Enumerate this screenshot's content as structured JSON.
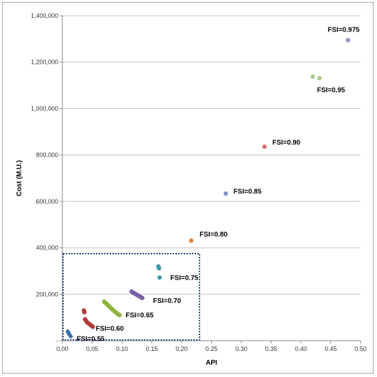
{
  "chart_data": {
    "type": "scatter",
    "title": "",
    "xlabel": "API",
    "ylabel": "Cost (M.U.)",
    "xlim": [
      0,
      0.5
    ],
    "ylim": [
      0,
      1400000
    ],
    "x_ticks": [
      "0.00",
      "0.05",
      "0.10",
      "0.15",
      "0.20",
      "0.25",
      "0.30",
      "0.35",
      "0.40",
      "0.45",
      "0.50"
    ],
    "y_ticks": [
      "-",
      "200,000",
      "400,000",
      "600,000",
      "800,000",
      "1,000,000",
      "1,200,000",
      "1,400,000"
    ],
    "grid": "horizontal",
    "legend": "none",
    "series": [
      {
        "label": "FSI=0.55",
        "color": "#3a6fb0",
        "marker": "diamond",
        "points": [
          [
            0.009,
            40000
          ],
          [
            0.01,
            35000
          ],
          [
            0.011,
            30000
          ],
          [
            0.012,
            26000
          ],
          [
            0.013,
            22000
          ],
          [
            0.014,
            18000
          ]
        ]
      },
      {
        "label": "FSI=0.60",
        "color": "#b03a3a",
        "marker": "circle",
        "points": [
          [
            0.036,
            130000
          ],
          [
            0.037,
            123000
          ],
          [
            0.038,
            92000
          ],
          [
            0.04,
            85000
          ],
          [
            0.041,
            80000
          ],
          [
            0.043,
            76000
          ],
          [
            0.045,
            72000
          ],
          [
            0.047,
            68000
          ],
          [
            0.049,
            64000
          ],
          [
            0.051,
            60000
          ]
        ]
      },
      {
        "label": "FSI=0.65",
        "color": "#8db43c",
        "marker": "circle",
        "points": [
          [
            0.07,
            168000
          ],
          [
            0.072,
            164000
          ],
          [
            0.074,
            159000
          ],
          [
            0.076,
            154000
          ],
          [
            0.078,
            149000
          ],
          [
            0.08,
            144000
          ],
          [
            0.082,
            139000
          ],
          [
            0.084,
            134000
          ],
          [
            0.086,
            130000
          ],
          [
            0.088,
            125000
          ],
          [
            0.09,
            121000
          ],
          [
            0.092,
            117000
          ],
          [
            0.094,
            113000
          ],
          [
            0.096,
            110000
          ]
        ]
      },
      {
        "label": "FSI=0.70",
        "color": "#7b5ea8",
        "marker": "circle",
        "points": [
          [
            0.116,
            212000
          ],
          [
            0.118,
            208000
          ],
          [
            0.12,
            205000
          ],
          [
            0.122,
            202000
          ],
          [
            0.124,
            199000
          ],
          [
            0.126,
            196000
          ],
          [
            0.128,
            193000
          ],
          [
            0.13,
            190000
          ],
          [
            0.132,
            187000
          ],
          [
            0.134,
            184000
          ]
        ]
      },
      {
        "label": "FSI=0.75",
        "color": "#3a9aa8",
        "marker": "circle",
        "points": [
          [
            0.161,
            320000
          ],
          [
            0.162,
            312000
          ],
          [
            0.163,
            272000
          ]
        ]
      },
      {
        "label": "FSI=0.80",
        "color": "#e87e2e",
        "marker": "circle",
        "points": [
          [
            0.216,
            431000
          ]
        ]
      },
      {
        "label": "FSI=0.85",
        "color": "#7f95c8",
        "marker": "circle",
        "points": [
          [
            0.274,
            634000
          ]
        ]
      },
      {
        "label": "FSI=0.90",
        "color": "#d96b6b",
        "marker": "circle",
        "points": [
          [
            0.339,
            836000
          ]
        ]
      },
      {
        "label": "FSI=0.95",
        "color": "#a8cc8c",
        "marker": "circle",
        "points": [
          [
            0.42,
            1138000
          ],
          [
            0.431,
            1131000
          ]
        ]
      },
      {
        "label": "FSI=0.975",
        "color": "#9a8fc6",
        "marker": "circle",
        "points": [
          [
            0.479,
            1295000
          ]
        ]
      }
    ],
    "annotations": [
      {
        "text": "FSI=0.55",
        "x": 0.024,
        "y": 8000
      },
      {
        "text": "FSI=0.60",
        "x": 0.056,
        "y": 52000
      },
      {
        "text": "FSI=0.65",
        "x": 0.106,
        "y": 110000
      },
      {
        "text": "FSI=0.70",
        "x": 0.152,
        "y": 172000
      },
      {
        "text": "FSI=0.75",
        "x": 0.181,
        "y": 270000
      },
      {
        "text": "FSI=0.80",
        "x": 0.23,
        "y": 458000
      },
      {
        "text": "FSI=0.85",
        "x": 0.287,
        "y": 643000
      },
      {
        "text": "FSI=0.90",
        "x": 0.352,
        "y": 853000
      },
      {
        "text": "FSI=0.95",
        "x": 0.427,
        "y": 1080000
      },
      {
        "text": "FSI=0.975",
        "x": 0.445,
        "y": 1340000
      }
    ],
    "highlight_region": {
      "x": [
        0.0,
        0.23
      ],
      "y": [
        0,
        375000
      ],
      "style": "dotted",
      "color": "#1f3a7a"
    }
  }
}
